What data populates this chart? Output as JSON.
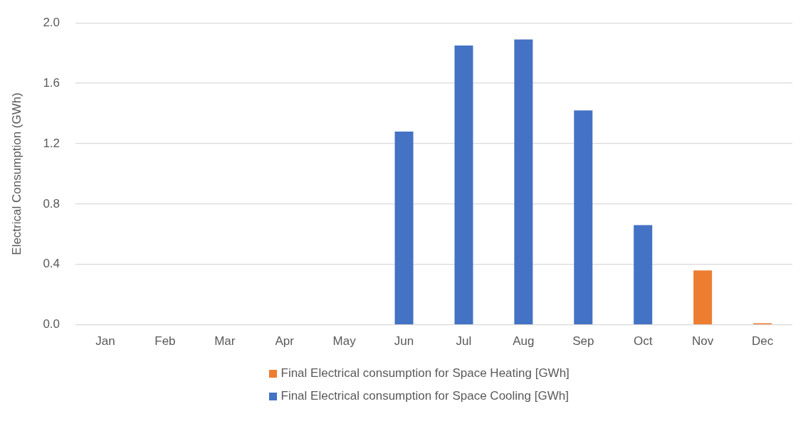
{
  "chart_data": {
    "type": "bar",
    "ylabel": "Electrical Consumption (GWh)",
    "categories": [
      "Jan",
      "Feb",
      "Mar",
      "Apr",
      "May",
      "Jun",
      "Jul",
      "Aug",
      "Sep",
      "Oct",
      "Nov",
      "Dec"
    ],
    "series": [
      {
        "name": "Final Electrical consumption for Space Heating [GWh]",
        "color": "#ed7d31",
        "values": [
          0,
          0,
          0,
          0,
          0,
          0,
          0,
          0,
          0,
          0,
          0.36,
          0.01
        ]
      },
      {
        "name": "Final Electrical consumption for Space Cooling [GWh]",
        "color": "#4472c4",
        "values": [
          0,
          0,
          0,
          0,
          0,
          1.28,
          1.85,
          1.89,
          1.42,
          0.66,
          0,
          0
        ]
      }
    ],
    "stacked": true,
    "ylim": [
      0,
      2.0
    ],
    "yticks": [
      {
        "value": 0,
        "label": "0.0"
      },
      {
        "value": 0.4,
        "label": "0.4"
      },
      {
        "value": 0.8,
        "label": "0.8"
      },
      {
        "value": 1.2,
        "label": "1.2"
      },
      {
        "value": 1.6,
        "label": "1.6"
      },
      {
        "value": 2.0,
        "label": "2.0"
      }
    ],
    "grid": "y",
    "legend": "bottom"
  }
}
